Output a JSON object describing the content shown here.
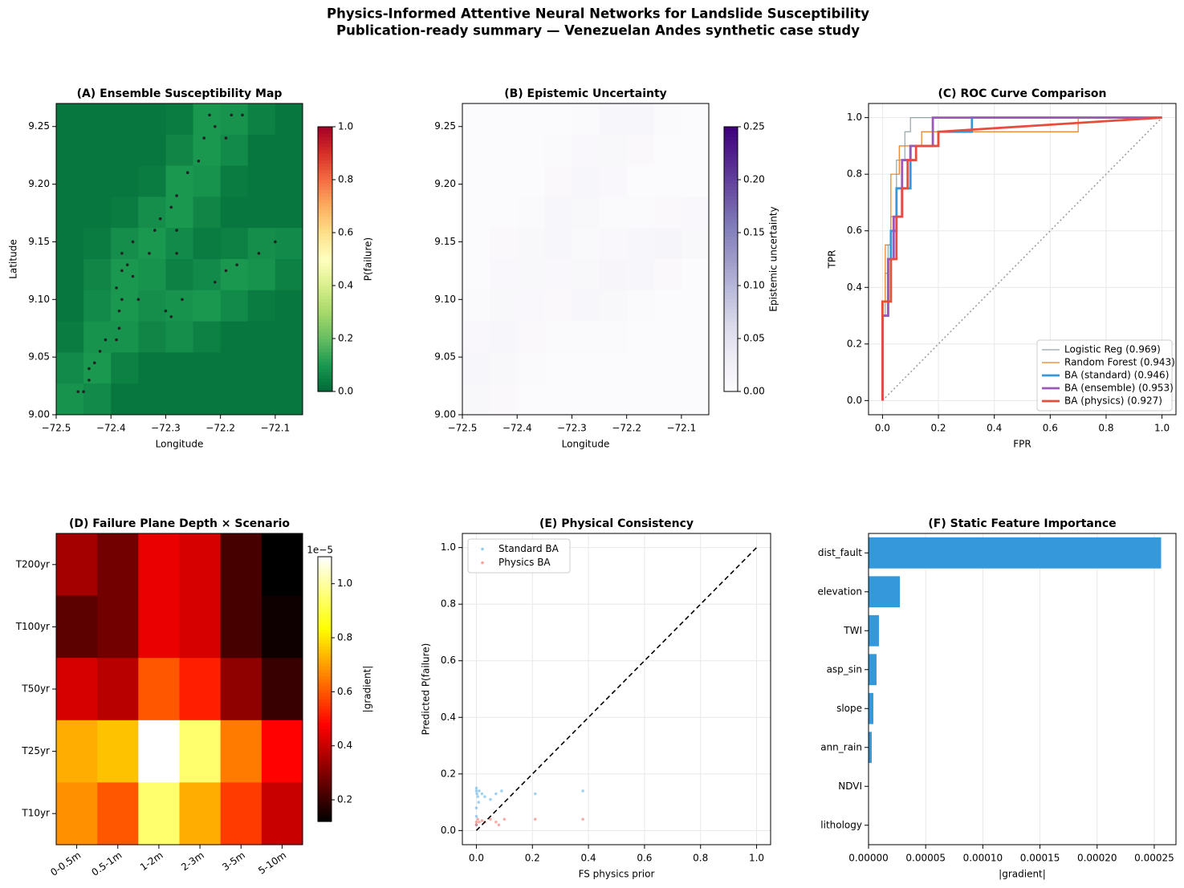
{
  "suptitle": [
    "Physics-Informed Attentive Neural Networks for Landslide Susceptibility",
    "Publication-ready summary  — Venezuelan Andes synthetic case study"
  ],
  "chart_data": [
    {
      "type": "map",
      "title": "(A) Ensemble Susceptibility Map",
      "xlabel": "Longitude",
      "ylabel": "Latitude",
      "colormap": "RdYlGn_r",
      "xlim": [
        -72.5,
        -72.05
      ],
      "ylim": [
        9.0,
        9.27
      ],
      "xticks": [
        {
          "value": -72.5,
          "label": "−72.5"
        },
        {
          "value": -72.4,
          "label": "−72.4"
        },
        {
          "value": -72.3,
          "label": "−72.3"
        },
        {
          "value": -72.2,
          "label": "−72.2"
        },
        {
          "value": -72.1,
          "label": "−72.1"
        }
      ],
      "yticks": [
        {
          "value": 9,
          "label": "9.00"
        },
        9.05,
        {
          "value": 9.1,
          "label": "9.10"
        },
        9.15,
        {
          "value": 9.2,
          "label": "9.20"
        },
        9.25
      ],
      "z": [
        [
          0.03,
          0.03,
          0.03,
          0.03,
          0.04,
          0.1,
          0.09,
          0.05,
          0.03
        ],
        [
          0.03,
          0.03,
          0.03,
          0.03,
          0.06,
          0.1,
          0.07,
          0.03,
          0.03
        ],
        [
          0.03,
          0.03,
          0.03,
          0.04,
          0.1,
          0.09,
          0.04,
          0.03,
          0.03
        ],
        [
          0.03,
          0.03,
          0.04,
          0.08,
          0.1,
          0.06,
          0.03,
          0.03,
          0.03
        ],
        [
          0.03,
          0.04,
          0.08,
          0.1,
          0.07,
          0.04,
          0.05,
          0.08,
          0.07
        ],
        [
          0.03,
          0.06,
          0.1,
          0.09,
          0.05,
          0.07,
          0.1,
          0.09,
          0.05
        ],
        [
          0.03,
          0.07,
          0.1,
          0.08,
          0.09,
          0.1,
          0.07,
          0.04,
          0.03
        ],
        [
          0.04,
          0.09,
          0.09,
          0.06,
          0.08,
          0.05,
          0.03,
          0.03,
          0.03
        ],
        [
          0.07,
          0.1,
          0.05,
          0.03,
          0.03,
          0.03,
          0.03,
          0.03,
          0.03
        ],
        [
          0.09,
          0.07,
          0.03,
          0.03,
          0.03,
          0.03,
          0.03,
          0.03,
          0.03
        ]
      ],
      "colorbar": {
        "label": "P(failure)",
        "lim": [
          0,
          1
        ],
        "ticks": [
          {
            "value": 0,
            "label": "0.0"
          },
          0.2,
          0.4,
          0.6,
          0.8,
          {
            "value": 1,
            "label": "1.0"
          }
        ]
      },
      "points": {
        "color": "#222222",
        "x": [
          -72.46,
          -72.45,
          -72.44,
          -72.44,
          -72.43,
          -72.42,
          -72.41,
          -72.39,
          -72.385,
          -72.385,
          -72.38,
          -72.39,
          -72.38,
          -72.37,
          -72.36,
          -72.35,
          -72.38,
          -72.36,
          -72.33,
          -72.32,
          -72.31,
          -72.29,
          -72.28,
          -72.26,
          -72.24,
          -72.23,
          -72.21,
          -72.22,
          -72.18,
          -72.16,
          -72.19,
          -72.3,
          -72.29,
          -72.27,
          -72.21,
          -72.19,
          -72.17,
          -72.13,
          -72.1,
          -72.28,
          -72.28
        ],
        "y": [
          9.02,
          9.02,
          9.03,
          9.04,
          9.045,
          9.055,
          9.065,
          9.065,
          9.075,
          9.09,
          9.1,
          9.11,
          9.125,
          9.13,
          9.12,
          9.1,
          9.14,
          9.15,
          9.14,
          9.16,
          9.17,
          9.18,
          9.19,
          9.21,
          9.22,
          9.24,
          9.25,
          9.26,
          9.26,
          9.26,
          9.24,
          9.09,
          9.085,
          9.1,
          9.115,
          9.125,
          9.13,
          9.14,
          9.15,
          9.14,
          9.16
        ]
      }
    },
    {
      "type": "map",
      "title": "(B) Epistemic Uncertainty",
      "xlabel": "Longitude",
      "colormap": "Purples",
      "xlim": [
        -72.5,
        -72.05
      ],
      "ylim": [
        9.0,
        9.27
      ],
      "xticks": [
        {
          "value": -72.5,
          "label": "−72.5"
        },
        {
          "value": -72.4,
          "label": "−72.4"
        },
        {
          "value": -72.3,
          "label": "−72.3"
        },
        {
          "value": -72.2,
          "label": "−72.2"
        },
        {
          "value": -72.1,
          "label": "−72.1"
        }
      ],
      "yticks": [
        {
          "value": 9,
          "label": "9.00"
        },
        9.05,
        {
          "value": 9.1,
          "label": "9.10"
        },
        9.15,
        {
          "value": 9.2,
          "label": "9.20"
        },
        9.25
      ],
      "z": [
        [
          0.003,
          0.003,
          0.003,
          0.003,
          0.005,
          0.012,
          0.012,
          0.004,
          0.003
        ],
        [
          0.003,
          0.003,
          0.003,
          0.004,
          0.008,
          0.01,
          0.006,
          0.003,
          0.003
        ],
        [
          0.003,
          0.003,
          0.003,
          0.006,
          0.012,
          0.008,
          0.003,
          0.003,
          0.003
        ],
        [
          0.003,
          0.003,
          0.005,
          0.012,
          0.01,
          0.005,
          0.004,
          0.006,
          0.008
        ],
        [
          0.003,
          0.006,
          0.01,
          0.012,
          0.007,
          0.008,
          0.012,
          0.014,
          0.01
        ],
        [
          0.003,
          0.008,
          0.01,
          0.008,
          0.01,
          0.013,
          0.012,
          0.006,
          0.003
        ],
        [
          0.004,
          0.01,
          0.008,
          0.006,
          0.012,
          0.01,
          0.005,
          0.003,
          0.003
        ],
        [
          0.008,
          0.012,
          0.006,
          0.004,
          0.005,
          0.004,
          0.003,
          0.003,
          0.003
        ],
        [
          0.012,
          0.01,
          0.004,
          0.003,
          0.003,
          0.003,
          0.003,
          0.003,
          0.003
        ],
        [
          0.01,
          0.006,
          0.003,
          0.003,
          0.003,
          0.003,
          0.003,
          0.003,
          0.003
        ]
      ],
      "colorbar": {
        "label": "Epistemic uncertainty",
        "lim": [
          0,
          0.25
        ],
        "ticks": [
          {
            "value": 0,
            "label": "0.00"
          },
          0.05,
          {
            "value": 0.1,
            "label": "0.10"
          },
          0.15,
          {
            "value": 0.2,
            "label": "0.20"
          },
          0.25
        ]
      }
    },
    {
      "type": "line",
      "title": "(C) ROC Curve Comparison",
      "xlabel": "FPR",
      "ylabel": "TPR",
      "grid": true,
      "legend": "lower right",
      "xlim": [
        -0.05,
        1.05
      ],
      "ylim": [
        -0.05,
        1.05
      ],
      "xticks": [
        {
          "value": 0,
          "label": "0.0"
        },
        0.2,
        0.4,
        0.6,
        0.8,
        {
          "value": 1,
          "label": "1.0"
        }
      ],
      "yticks": [
        {
          "value": 0,
          "label": "0.0"
        },
        0.2,
        0.4,
        0.6,
        0.8,
        {
          "value": 1,
          "label": "1.0"
        }
      ],
      "series": [
        {
          "name": "Logistic Reg (0.969)",
          "color": "#95a5a6",
          "linewidth": 1.2,
          "x": [
            0,
            0,
            0.01,
            0.01,
            0.02,
            0.02,
            0.03,
            0.03,
            0.05,
            0.05,
            0.08,
            0.08,
            0.1,
            0.1,
            1
          ],
          "y": [
            0,
            0.3,
            0.3,
            0.45,
            0.45,
            0.55,
            0.55,
            0.65,
            0.65,
            0.85,
            0.85,
            0.95,
            0.95,
            1,
            1
          ]
        },
        {
          "name": "Random Forest (0.943)",
          "color": "#e67e22",
          "linewidth": 1.2,
          "x": [
            0,
            0,
            0.01,
            0.01,
            0.03,
            0.03,
            0.06,
            0.06,
            0.14,
            0.14,
            0.7,
            0.7,
            1
          ],
          "y": [
            0,
            0.35,
            0.35,
            0.55,
            0.55,
            0.8,
            0.8,
            0.9,
            0.9,
            0.95,
            0.95,
            1,
            1
          ]
        },
        {
          "name": "BA (standard) (0.946)",
          "color": "#3498db",
          "linewidth": 2.8,
          "x": [
            0,
            0,
            0.02,
            0.02,
            0.03,
            0.03,
            0.05,
            0.05,
            0.1,
            0.1,
            0.2,
            0.2,
            0.32,
            0.32,
            1
          ],
          "y": [
            0,
            0.3,
            0.3,
            0.5,
            0.5,
            0.6,
            0.6,
            0.75,
            0.75,
            0.9,
            0.9,
            0.95,
            0.95,
            1,
            1
          ]
        },
        {
          "name": "BA (ensemble) (0.953)",
          "color": "#9b59b6",
          "linewidth": 2.8,
          "x": [
            0,
            0,
            0.02,
            0.02,
            0.04,
            0.04,
            0.07,
            0.07,
            0.1,
            0.1,
            0.18,
            0.18,
            1
          ],
          "y": [
            0,
            0.3,
            0.3,
            0.5,
            0.5,
            0.65,
            0.65,
            0.85,
            0.85,
            0.9,
            0.9,
            1,
            1
          ]
        },
        {
          "name": "BA (physics) (0.927)",
          "color": "#e74c3c",
          "linewidth": 2.8,
          "x": [
            0,
            0,
            0.03,
            0.03,
            0.05,
            0.05,
            0.07,
            0.07,
            0.09,
            0.09,
            0.12,
            0.12,
            0.2,
            0.2,
            1
          ],
          "y": [
            0,
            0.35,
            0.35,
            0.5,
            0.5,
            0.65,
            0.65,
            0.75,
            0.75,
            0.85,
            0.85,
            0.9,
            0.9,
            0.95,
            1
          ]
        }
      ],
      "reference_line": {
        "color": "#999999",
        "x": [
          0,
          1
        ],
        "y": [
          0,
          1
        ]
      }
    },
    {
      "type": "heatmap",
      "title": "(D) Failure Plane Depth × Scenario",
      "colormap": "hot",
      "categories": [
        "0-0.5m",
        "0.5-1m",
        "1-2m",
        "2-3m",
        "3-5m",
        "5-10m"
      ],
      "rows": [
        "T200yr",
        "T100yr",
        "T50yr",
        "T25yr",
        "T10yr"
      ],
      "z": [
        [
          0.35,
          0.28,
          0.45,
          0.42,
          0.22,
          0.12
        ],
        [
          0.25,
          0.28,
          0.45,
          0.42,
          0.22,
          0.14
        ],
        [
          0.42,
          0.38,
          0.6,
          0.52,
          0.32,
          0.2
        ],
        [
          0.72,
          0.75,
          1.1,
          0.95,
          0.65,
          0.48
        ],
        [
          0.68,
          0.6,
          0.95,
          0.72,
          0.56,
          0.4
        ]
      ],
      "colorbar": {
        "label": "|gradient|",
        "offset_label": "1e−5",
        "lim": [
          0.12,
          1.1
        ],
        "ticks": [
          0.2,
          0.4,
          0.6,
          0.8,
          {
            "value": 1,
            "label": "1.0"
          }
        ]
      }
    },
    {
      "type": "scatter",
      "title": "(E) Physical Consistency",
      "xlabel": "FS physics prior",
      "ylabel": "Predicted P(failure)",
      "grid": true,
      "legend": "upper left",
      "xlim": [
        -0.05,
        1.05
      ],
      "ylim": [
        -0.05,
        1.05
      ],
      "xticks": [
        {
          "value": 0,
          "label": "0.0"
        },
        0.2,
        0.4,
        0.6,
        0.8,
        {
          "value": 1,
          "label": "1.0"
        }
      ],
      "yticks": [
        {
          "value": 0,
          "label": "0.0"
        },
        0.2,
        0.4,
        0.6,
        0.8,
        {
          "value": 1,
          "label": "1.0"
        }
      ],
      "series": [
        {
          "name": "Standard BA",
          "color": "#3498db",
          "x": [
            0,
            0,
            0.002,
            0.005,
            0.008,
            0.01,
            0,
            0,
            0.02,
            0.03,
            0.05,
            0.07,
            0.09,
            0.21,
            0.38,
            0
          ],
          "y": [
            0.15,
            0.14,
            0.13,
            0.12,
            0.1,
            0.14,
            0.08,
            0.05,
            0.13,
            0.12,
            0.11,
            0.13,
            0.14,
            0.13,
            0.14,
            0.02
          ]
        },
        {
          "name": "Physics BA",
          "color": "#e74c3c",
          "x": [
            0,
            0,
            0.005,
            0.01,
            0.02,
            0.03,
            0.05,
            0.07,
            0.1,
            0.21,
            0.38,
            0.08
          ],
          "y": [
            0.03,
            0.02,
            0.04,
            0.03,
            0.035,
            0.03,
            0.04,
            0.03,
            0.04,
            0.04,
            0.04,
            0.02
          ]
        }
      ],
      "reference_line": {
        "color": "#000000",
        "x": [
          0,
          1
        ],
        "y": [
          0,
          1
        ]
      }
    },
    {
      "type": "bar",
      "orientation": "horizontal",
      "title": "(F) Static Feature Importance",
      "xlabel": "|gradient|",
      "grid": "x",
      "color": "#3498db",
      "categories": [
        "dist_fault",
        "elevation",
        "TWI",
        "asp_sin",
        "slope",
        "ann_rain",
        "NDVI",
        "lithology"
      ],
      "values": [
        0.000256,
        2.74e-05,
        9.1e-06,
        7e-06,
        4.2e-06,
        2.8e-06,
        0,
        0
      ],
      "xlim": [
        0,
        0.000269
      ],
      "xticks": [
        {
          "value": 0,
          "label": "0.00000"
        },
        {
          "value": 5e-05,
          "label": "0.00005"
        },
        {
          "value": 0.0001,
          "label": "0.00010"
        },
        {
          "value": 0.00015,
          "label": "0.00015"
        },
        {
          "value": 0.0002,
          "label": "0.00020"
        },
        {
          "value": 0.00025,
          "label": "0.00025"
        }
      ]
    }
  ]
}
